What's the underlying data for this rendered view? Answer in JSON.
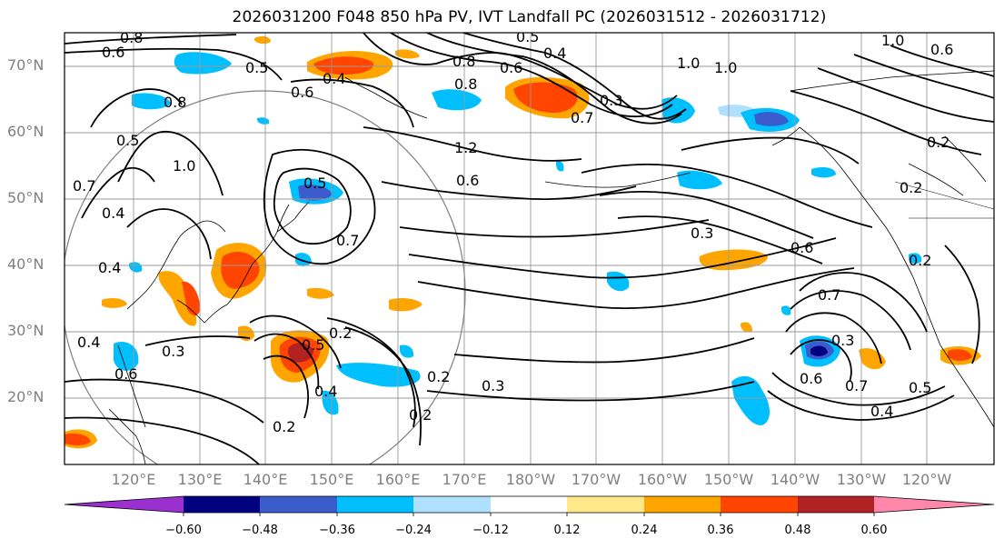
{
  "title": "2026031200 F048 850 hPa PV, IVT Landfall PC (2026031512 - 2026031712)",
  "lat_labels": [
    "70°N",
    "60°N",
    "50°N",
    "40°N",
    "30°N",
    "20°N"
  ],
  "lon_labels": [
    "120°E",
    "130°E",
    "140°E",
    "150°E",
    "160°E",
    "170°E",
    "180°W",
    "170°W",
    "160°W",
    "150°W",
    "140°W",
    "130°W",
    "120°W"
  ],
  "colorbar": {
    "ticks": [
      "−0.60",
      "−0.48",
      "−0.36",
      "−0.24",
      "−0.12",
      "0.12",
      "0.24",
      "0.36",
      "0.48",
      "0.60"
    ],
    "colors": [
      "#9b30d0",
      "#000080",
      "#3a5ccc",
      "#00bfff",
      "#b0e0ff",
      "#ffffff",
      "#ffe88a",
      "#ffa500",
      "#ff4500",
      "#b22222",
      "#ff88aa"
    ]
  },
  "contour_labels": [
    "0.8",
    "0.6",
    "0.5",
    "0.6",
    "0.4",
    "0.8",
    "0.5",
    "0.8",
    "0.6",
    "0.4",
    "1.0",
    "1.0",
    "0.6",
    "1.2",
    "0.5",
    "0.6",
    "0.7",
    "1.0",
    "0.5",
    "0.7",
    "0.4",
    "0.4",
    "0.8",
    "0.6",
    "0.2",
    "0.7",
    "0.3",
    "0.3",
    "0.5",
    "0.2",
    "0.4",
    "0.2",
    "0.2",
    "0.3",
    "0.2",
    "0.6",
    "0.7",
    "0.4",
    "0.5",
    "0.2",
    "0.3",
    "1.0",
    "0.2",
    "0.3",
    "0.4",
    "0.6",
    "0.7"
  ]
}
